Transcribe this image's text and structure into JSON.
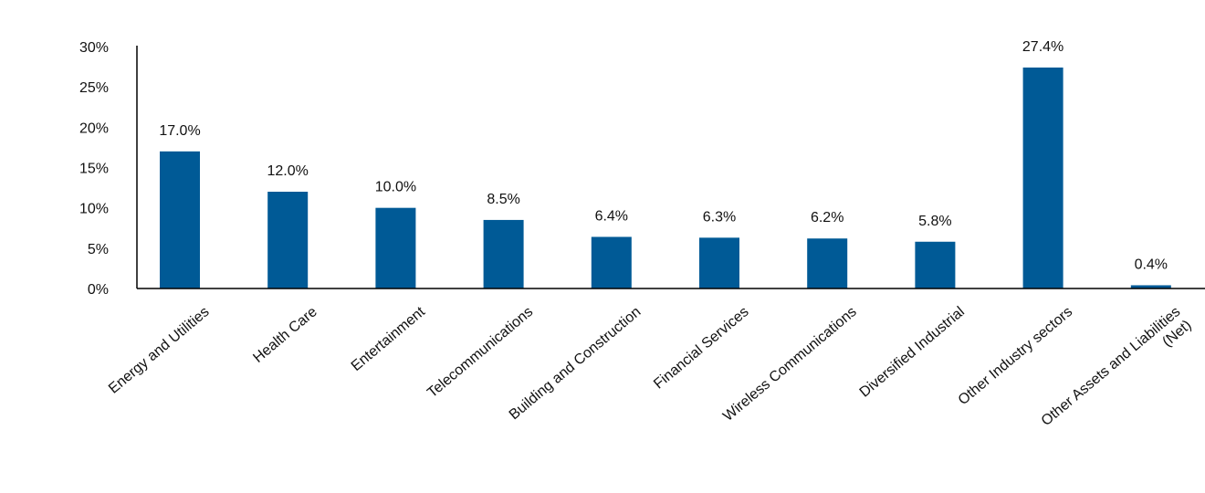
{
  "chart_data": {
    "type": "bar",
    "categories": [
      [
        "Energy and Utilities"
      ],
      [
        "Health Care"
      ],
      [
        "Entertainment"
      ],
      [
        "Telecommunications"
      ],
      [
        "Building and Construction"
      ],
      [
        "Financial Services"
      ],
      [
        "Wireless Communications"
      ],
      [
        "Diversified Industrial"
      ],
      [
        "Other Industry sectors"
      ],
      [
        "Other Assets and Liabilities",
        "(Net)"
      ]
    ],
    "values": [
      17.0,
      12.0,
      10.0,
      8.5,
      6.4,
      6.3,
      6.2,
      5.8,
      27.4,
      0.4
    ],
    "data_labels": [
      "17.0%",
      "12.0%",
      "10.0%",
      "8.5%",
      "6.4%",
      "6.3%",
      "6.2%",
      "5.8%",
      "27.4%",
      "0.4%"
    ],
    "y_ticks": [
      0,
      5,
      10,
      15,
      20,
      25,
      30
    ],
    "y_tick_labels": [
      "0%",
      "5%",
      "10%",
      "15%",
      "20%",
      "25%",
      "30%"
    ],
    "ylim": [
      0,
      30
    ],
    "title": "",
    "xlabel": "",
    "ylabel": "",
    "legend": "none",
    "grid": false,
    "bar_color": "#005a96"
  }
}
